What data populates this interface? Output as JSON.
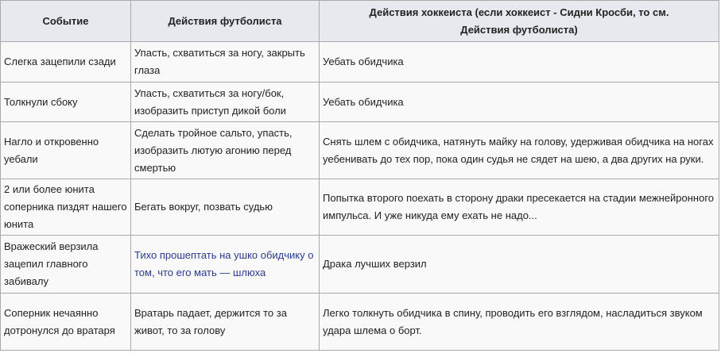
{
  "table": {
    "headers": [
      "Событие",
      "Действия футболиста",
      "Действия хоккеиста (если хоккеист - Сидни Кросби, то см. Действия футболиста)"
    ],
    "rows": [
      {
        "event": "Слегка зацепили сзади",
        "footballer": "Упасть, схватиться за ногу, закрыть глаза",
        "hockey": "Уебать обидчика"
      },
      {
        "event": "Толкнули сбоку",
        "footballer": "Упасть, схватиться за ногу/бок, изобразить приступ дикой боли",
        "hockey": "Уебать обидчика"
      },
      {
        "event": "Нагло и откровенно уебали",
        "footballer": "Сделать тройное сальто, упасть, изобразить лютую агонию перед смертью",
        "hockey": "Снять шлем с обидчика, натянуть майку на голову, удерживая обидчика на ногах уебенивать до тех пор, пока один судья не сядет на шею, а два других на руки."
      },
      {
        "event": "2 или более юнита соперника пиздят нашего юнита",
        "footballer": "Бегать вокруг, позвать судью",
        "hockey": "Попытка второго поехать в сторону драки пресекается на стадии межнейронного импульса. И уже никуда ему ехать не надо..."
      },
      {
        "event": "Вражеский верзила зацепил главного забивалу",
        "footballer": "Тихо прошептать на ушко обидчику о том, что его мать — шлюха",
        "hockey": "Драка лучших верзил"
      },
      {
        "event": "Соперник нечаянно дотронулся до вратаря",
        "footballer": "Вратарь падает, держится то за живот, то за голову",
        "hockey": "Легко толкнуть обидчика в спину, проводить его взглядом, насладиться звуком удара шлема о борт."
      }
    ]
  },
  "colors": {
    "header_bg": "#e8e9ee",
    "cell_bg": "#f9f9f9",
    "border": "#aaaaaa",
    "link": "#2b3a8c"
  }
}
